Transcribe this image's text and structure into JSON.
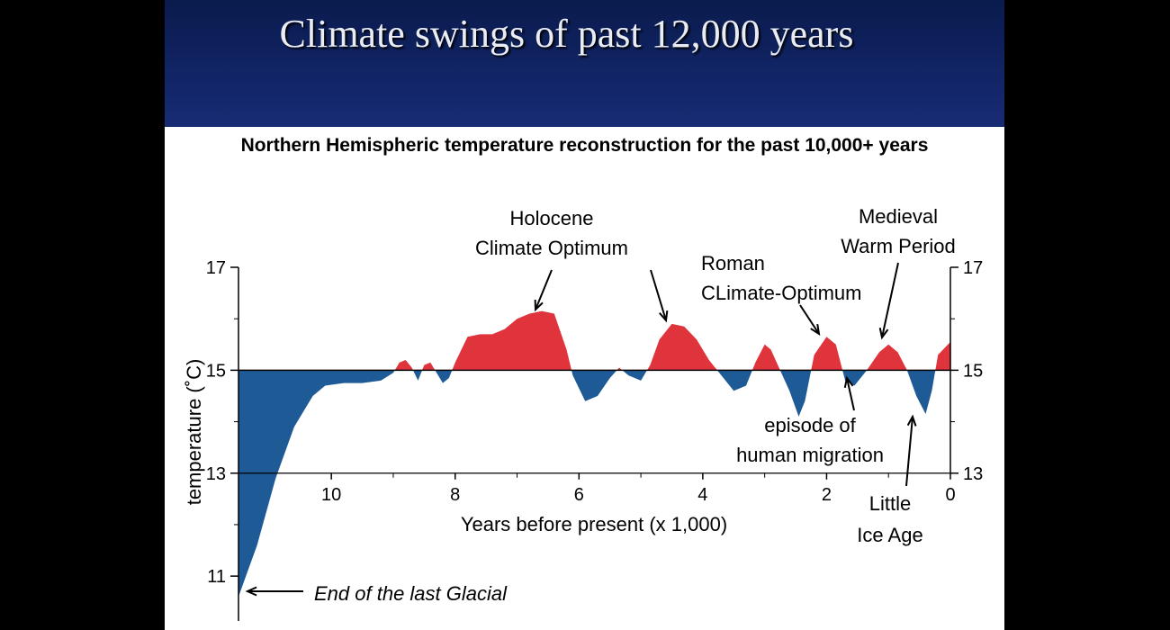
{
  "slide_title": "Climate swings of past 12,000 years",
  "chart_data": {
    "type": "area",
    "title": "Northern Hemispheric temperature reconstruction for the past 10,000+ years",
    "xlabel": "Years before present (x 1,000)",
    "ylabel": "temperature (˚C)",
    "xlim": [
      11.5,
      0
    ],
    "ylim": [
      10.6,
      17
    ],
    "baseline": 15,
    "x_ticks": [
      10,
      8,
      6,
      4,
      2,
      0
    ],
    "y_ticks": [
      17,
      15,
      13,
      11
    ],
    "right_y_ticks": [
      17,
      15,
      13
    ],
    "colors": {
      "above": "#e0343c",
      "below": "#1e5a96"
    },
    "series": [
      {
        "x": [
          11.5,
          11.2,
          10.9,
          10.6,
          10.3,
          10.1,
          9.8,
          9.5,
          9.2,
          9.0,
          8.9,
          8.8,
          8.7,
          8.6,
          8.5,
          8.4,
          8.3,
          8.2,
          8.1,
          8.0,
          7.9,
          7.8,
          7.6,
          7.4,
          7.2,
          7.0,
          6.8,
          6.6,
          6.4,
          6.2,
          6.1,
          5.9,
          5.7,
          5.5,
          5.35,
          5.2,
          5.0,
          4.85,
          4.7,
          4.5,
          4.3,
          4.1,
          3.9,
          3.7,
          3.5,
          3.3,
          3.15,
          3.0,
          2.9,
          2.75,
          2.6,
          2.45,
          2.35,
          2.2,
          2.0,
          1.85,
          1.7,
          1.55,
          1.35,
          1.15,
          1.0,
          0.85,
          0.7,
          0.55,
          0.4,
          0.3,
          0.2,
          0.0
        ],
        "y": [
          10.6,
          11.6,
          12.9,
          13.9,
          14.5,
          14.7,
          14.75,
          14.75,
          14.8,
          14.95,
          15.15,
          15.2,
          15.05,
          14.8,
          15.1,
          15.15,
          14.95,
          14.75,
          14.85,
          15.15,
          15.4,
          15.65,
          15.7,
          15.7,
          15.8,
          16.0,
          16.1,
          16.15,
          16.1,
          15.4,
          14.9,
          14.4,
          14.5,
          14.85,
          15.05,
          14.9,
          14.8,
          15.1,
          15.6,
          15.9,
          15.85,
          15.6,
          15.2,
          14.9,
          14.6,
          14.7,
          15.15,
          15.5,
          15.4,
          15.0,
          14.6,
          14.1,
          14.4,
          15.3,
          15.65,
          15.5,
          14.8,
          14.7,
          15.0,
          15.35,
          15.5,
          15.35,
          15.0,
          14.5,
          14.15,
          14.6,
          15.3,
          15.55
        ]
      }
    ],
    "annotations": [
      {
        "text": [
          "Holocene",
          "Climate Optimum"
        ],
        "targets": [
          6.4,
          4.5
        ]
      },
      {
        "text": [
          "Roman",
          "CLimate-Optimum"
        ],
        "targets": [
          1.85
        ]
      },
      {
        "text": [
          "Medieval",
          "Warm Period"
        ],
        "targets": [
          1.15
        ]
      },
      {
        "text": [
          "episode of",
          "human migration"
        ],
        "targets": [
          1.6
        ]
      },
      {
        "text": [
          "Little",
          "Ice Age"
        ],
        "targets": [
          0.55
        ]
      },
      {
        "text": [
          "End of the last Glacial"
        ],
        "targets": [
          11.5
        ],
        "style": "italic"
      }
    ]
  }
}
